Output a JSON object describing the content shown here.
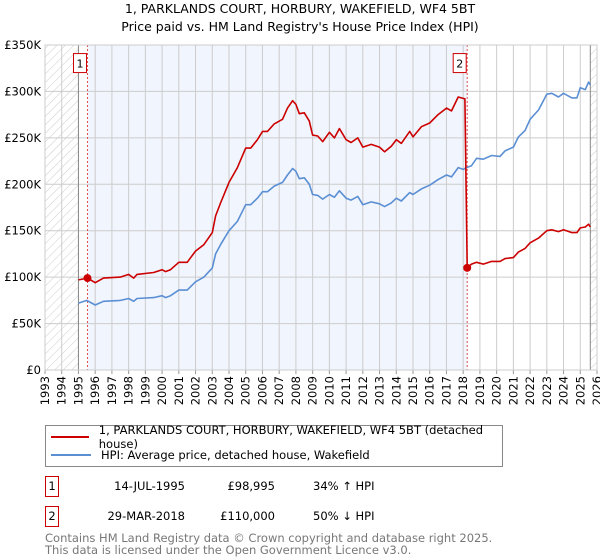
{
  "chart_data": {
    "type": "line",
    "title": "1, PARKLANDS COURT, HORBURY, WAKEFIELD, WF4 5BT",
    "subtitle": "Price paid vs. HM Land Registry's House Price Index (HPI)",
    "xlabel": "",
    "ylabel": "",
    "xlim": [
      1993,
      2026
    ],
    "ylim": [
      0,
      350000
    ],
    "grid": true,
    "x_ticks": [
      "1993",
      "1994",
      "1995",
      "1996",
      "1997",
      "1998",
      "1999",
      "2000",
      "2001",
      "2002",
      "2003",
      "2004",
      "2005",
      "2006",
      "2007",
      "2008",
      "2009",
      "2010",
      "2011",
      "2012",
      "2013",
      "2014",
      "2015",
      "2016",
      "2017",
      "2018",
      "2019",
      "2020",
      "2021",
      "2022",
      "2023",
      "2024",
      "2025",
      "2026"
    ],
    "y_ticks": [
      {
        "value": 0,
        "label": "£0"
      },
      {
        "value": 50000,
        "label": "£50K"
      },
      {
        "value": 100000,
        "label": "£100K"
      },
      {
        "value": 150000,
        "label": "£150K"
      },
      {
        "value": 200000,
        "label": "£200K"
      },
      {
        "value": 250000,
        "label": "£250K"
      },
      {
        "value": 300000,
        "label": "£300K"
      },
      {
        "value": 350000,
        "label": "£350K"
      }
    ],
    "data_range": [
      1995,
      2025.6
    ],
    "shaded_range": [
      1995.54,
      2018.24
    ],
    "series": [
      {
        "name": "1, PARKLANDS COURT, HORBURY, WAKEFIELD, WF4 5BT (detached house)",
        "color": "#cc0000",
        "x": [
          1995.0,
          1995.54,
          1996,
          1996.5,
          1997.5,
          1998,
          1998.3,
          1998.5,
          1999.5,
          2000,
          2000.2,
          2000.5,
          2001,
          2001.5,
          2002,
          2002.5,
          2003,
          2003.2,
          2003.5,
          2004,
          2004.5,
          2005,
          2005.3,
          2005.7,
          2006,
          2006.3,
          2006.7,
          2007.2,
          2007.5,
          2007.8,
          2008,
          2008.2,
          2008.5,
          2008.8,
          2009,
          2009.3,
          2009.6,
          2010,
          2010.3,
          2010.6,
          2011,
          2011.3,
          2011.7,
          2012,
          2012.5,
          2013,
          2013.3,
          2013.7,
          2014,
          2014.3,
          2014.8,
          2015,
          2015.5,
          2016,
          2016.5,
          2017,
          2017.3,
          2017.7,
          2018.1,
          2018.24,
          2018.5,
          2018.8,
          2019.2,
          2019.7,
          2020.2,
          2020.5,
          2021,
          2021.3,
          2021.7,
          2022,
          2022.5,
          2023,
          2023.3,
          2023.7,
          2024,
          2024.5,
          2024.8,
          2025,
          2025.3,
          2025.5,
          2025.6
        ],
        "y": [
          97,
          99,
          94,
          99,
          100,
          103,
          99,
          103,
          105,
          108,
          106,
          108,
          116,
          116,
          128,
          135,
          148,
          166,
          180,
          202,
          218,
          239,
          239,
          248,
          257,
          257,
          265,
          270,
          282,
          290,
          286,
          276,
          277,
          268,
          253,
          252,
          246,
          256,
          250,
          260,
          248,
          245,
          250,
          240,
          243,
          240,
          235,
          241,
          248,
          244,
          257,
          251,
          262,
          266,
          275,
          282,
          279,
          294,
          292,
          110,
          114,
          116,
          114,
          117,
          117,
          120,
          121,
          127,
          131,
          137,
          142,
          150,
          151,
          149,
          151,
          148,
          148,
          153,
          154,
          157,
          154
        ]
      },
      {
        "name": "HPI: Average price, detached house, Wakefield",
        "color": "#5b8fd4",
        "x": [
          1995.0,
          1995.5,
          1996,
          1996.5,
          1997.5,
          1998,
          1998.3,
          1998.5,
          1999.5,
          2000,
          2000.2,
          2000.5,
          2001,
          2001.5,
          2002,
          2002.5,
          2003,
          2003.2,
          2003.5,
          2004,
          2004.5,
          2005,
          2005.3,
          2005.7,
          2006,
          2006.3,
          2006.7,
          2007.2,
          2007.5,
          2007.8,
          2008,
          2008.2,
          2008.5,
          2008.8,
          2009,
          2009.3,
          2009.6,
          2010,
          2010.3,
          2010.6,
          2011,
          2011.3,
          2011.7,
          2012,
          2012.5,
          2013,
          2013.3,
          2013.7,
          2014,
          2014.3,
          2014.8,
          2015,
          2015.5,
          2016,
          2016.5,
          2017,
          2017.3,
          2017.7,
          2018,
          2018.2,
          2018.5,
          2018.8,
          2019.2,
          2019.7,
          2020.2,
          2020.5,
          2021,
          2021.3,
          2021.7,
          2022,
          2022.5,
          2023,
          2023.3,
          2023.7,
          2024,
          2024.5,
          2024.8,
          2025,
          2025.3,
          2025.5,
          2025.6
        ],
        "y": [
          72,
          75,
          70,
          74,
          75,
          77,
          74,
          77,
          78,
          80,
          78,
          80,
          86,
          86,
          95,
          100,
          110,
          125,
          135,
          150,
          160,
          178,
          178,
          185,
          192,
          192,
          198,
          202,
          210,
          217,
          214,
          206,
          207,
          200,
          189,
          188,
          184,
          189,
          186,
          193,
          185,
          183,
          187,
          178,
          181,
          179,
          176,
          180,
          185,
          182,
          191,
          189,
          195,
          199,
          205,
          210,
          208,
          218,
          216,
          218,
          220,
          228,
          227,
          231,
          230,
          236,
          240,
          251,
          258,
          270,
          280,
          297,
          298,
          294,
          298,
          293,
          293,
          304,
          302,
          310,
          307
        ]
      }
    ],
    "y_units": "thousands GBP",
    "annotations": [
      {
        "label": "1",
        "x": 1995.54,
        "y": 98995
      },
      {
        "label": "2",
        "x": 2018.24,
        "y": 110000
      }
    ],
    "legend_position": "below"
  },
  "legend": {
    "items": [
      {
        "label": "1, PARKLANDS COURT, HORBURY, WAKEFIELD, WF4 5BT (detached house)",
        "color": "#cc0000"
      },
      {
        "label": "HPI: Average price, detached house, Wakefield",
        "color": "#5b8fd4"
      }
    ]
  },
  "sales": [
    {
      "num": "1",
      "date": "14-JUL-1995",
      "price": "£98,995",
      "hpi": "34% ↑ HPI"
    },
    {
      "num": "2",
      "date": "29-MAR-2018",
      "price": "£110,000",
      "hpi": "50% ↓ HPI"
    }
  ],
  "footer": {
    "line1": "Contains HM Land Registry data © Crown copyright and database right 2025.",
    "line2": "This data is licensed under the Open Government Licence v3.0."
  }
}
